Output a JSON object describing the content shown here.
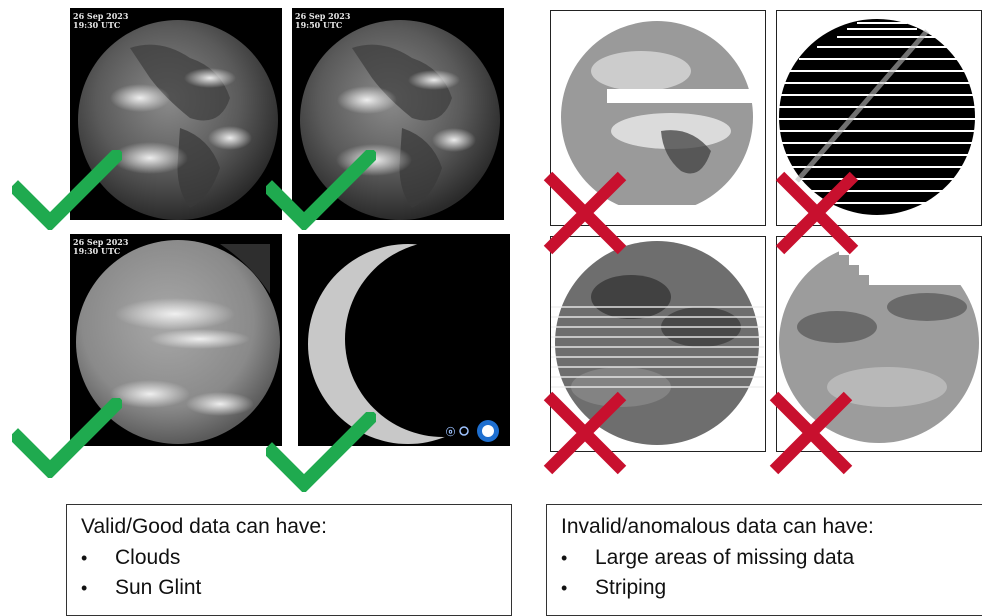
{
  "valid_images": [
    {
      "stamp_date": "26 Sep 2023",
      "stamp_time": "19:30 UTC",
      "icon": "earth-full-disk-icon"
    },
    {
      "stamp_date": "26 Sep 2023",
      "stamp_time": "19:50 UTC",
      "icon": "earth-full-disk-icon"
    },
    {
      "stamp_date": "26 Sep 2023",
      "stamp_time": "19:30 UTC",
      "icon": "earth-full-disk-icon"
    },
    {
      "icon": "earth-crescent-night-icon",
      "logo": "agency-logo-icon"
    }
  ],
  "invalid_images": [
    {
      "anomaly": "missing-data-band"
    },
    {
      "anomaly": "striping"
    },
    {
      "anomaly": "striping"
    },
    {
      "anomaly": "missing-data-corner"
    }
  ],
  "marks": {
    "check_icon": "checkmark-icon",
    "check_color": "#1faa4f",
    "cross_icon": "cross-icon",
    "cross_color": "#c8102e"
  },
  "valid_box": {
    "heading": "Valid/Good data can have:",
    "items": [
      "Clouds",
      "Sun Glint"
    ]
  },
  "invalid_box": {
    "heading": "Invalid/anomalous data can have:",
    "items": [
      "Large areas of missing data",
      "Striping"
    ]
  }
}
